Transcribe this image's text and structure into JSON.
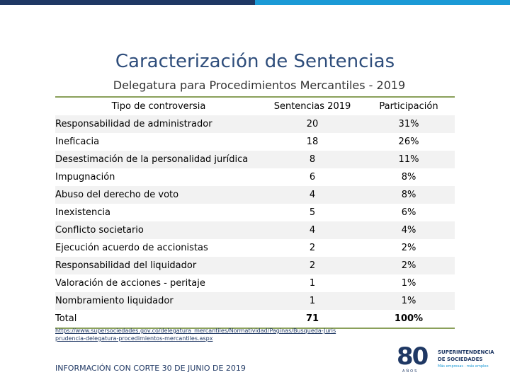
{
  "header": {
    "title": "Caracterización de Sentencias",
    "subtitle": "Delegatura para Procedimientos Mercantiles - 2019"
  },
  "table": {
    "headers": [
      "Tipo de controversia",
      "Sentencias 2019",
      "Participación"
    ],
    "rows": [
      [
        "Responsabilidad de administrador",
        "20",
        "31%"
      ],
      [
        "Ineficacia",
        "18",
        "26%"
      ],
      [
        "Desestimación de la personalidad jurídica",
        "8",
        "11%"
      ],
      [
        "Impugnación",
        "6",
        "8%"
      ],
      [
        "Abuso del derecho de voto",
        "4",
        "8%"
      ],
      [
        "Inexistencia",
        "5",
        "6%"
      ],
      [
        "Conflicto societario",
        "4",
        "4%"
      ],
      [
        "Ejecución acuerdo de accionistas",
        "2",
        "2%"
      ],
      [
        "Responsabilidad del liquidador",
        "2",
        "2%"
      ],
      [
        "Valoración de acciones - peritaje",
        "1",
        "1%"
      ],
      [
        "Nombramiento liquidador",
        "1",
        "1%"
      ]
    ],
    "total": [
      "Total",
      "71",
      "100%"
    ]
  },
  "footer": {
    "link": "https://www.supersociedades.gov.co/delegatura_mercantiles/Normatividad/Paginas/Busqueda-Jurisprudencia-delegatura-procedimientos-mercantiles.aspx",
    "cutoff": "INFORMACIÓN CON CORTE 30 DE JUNIO DE 2019"
  },
  "logo": {
    "number": "80",
    "years": "AÑOS",
    "line1": "SUPERINTENDENCIA",
    "line2": "DE SOCIEDADES",
    "line3": "Más empresas · más empleo"
  },
  "colors": {
    "accent_dark": "#1f3864",
    "accent_light": "#1b9ad6",
    "rule_green": "#8aa05a"
  }
}
